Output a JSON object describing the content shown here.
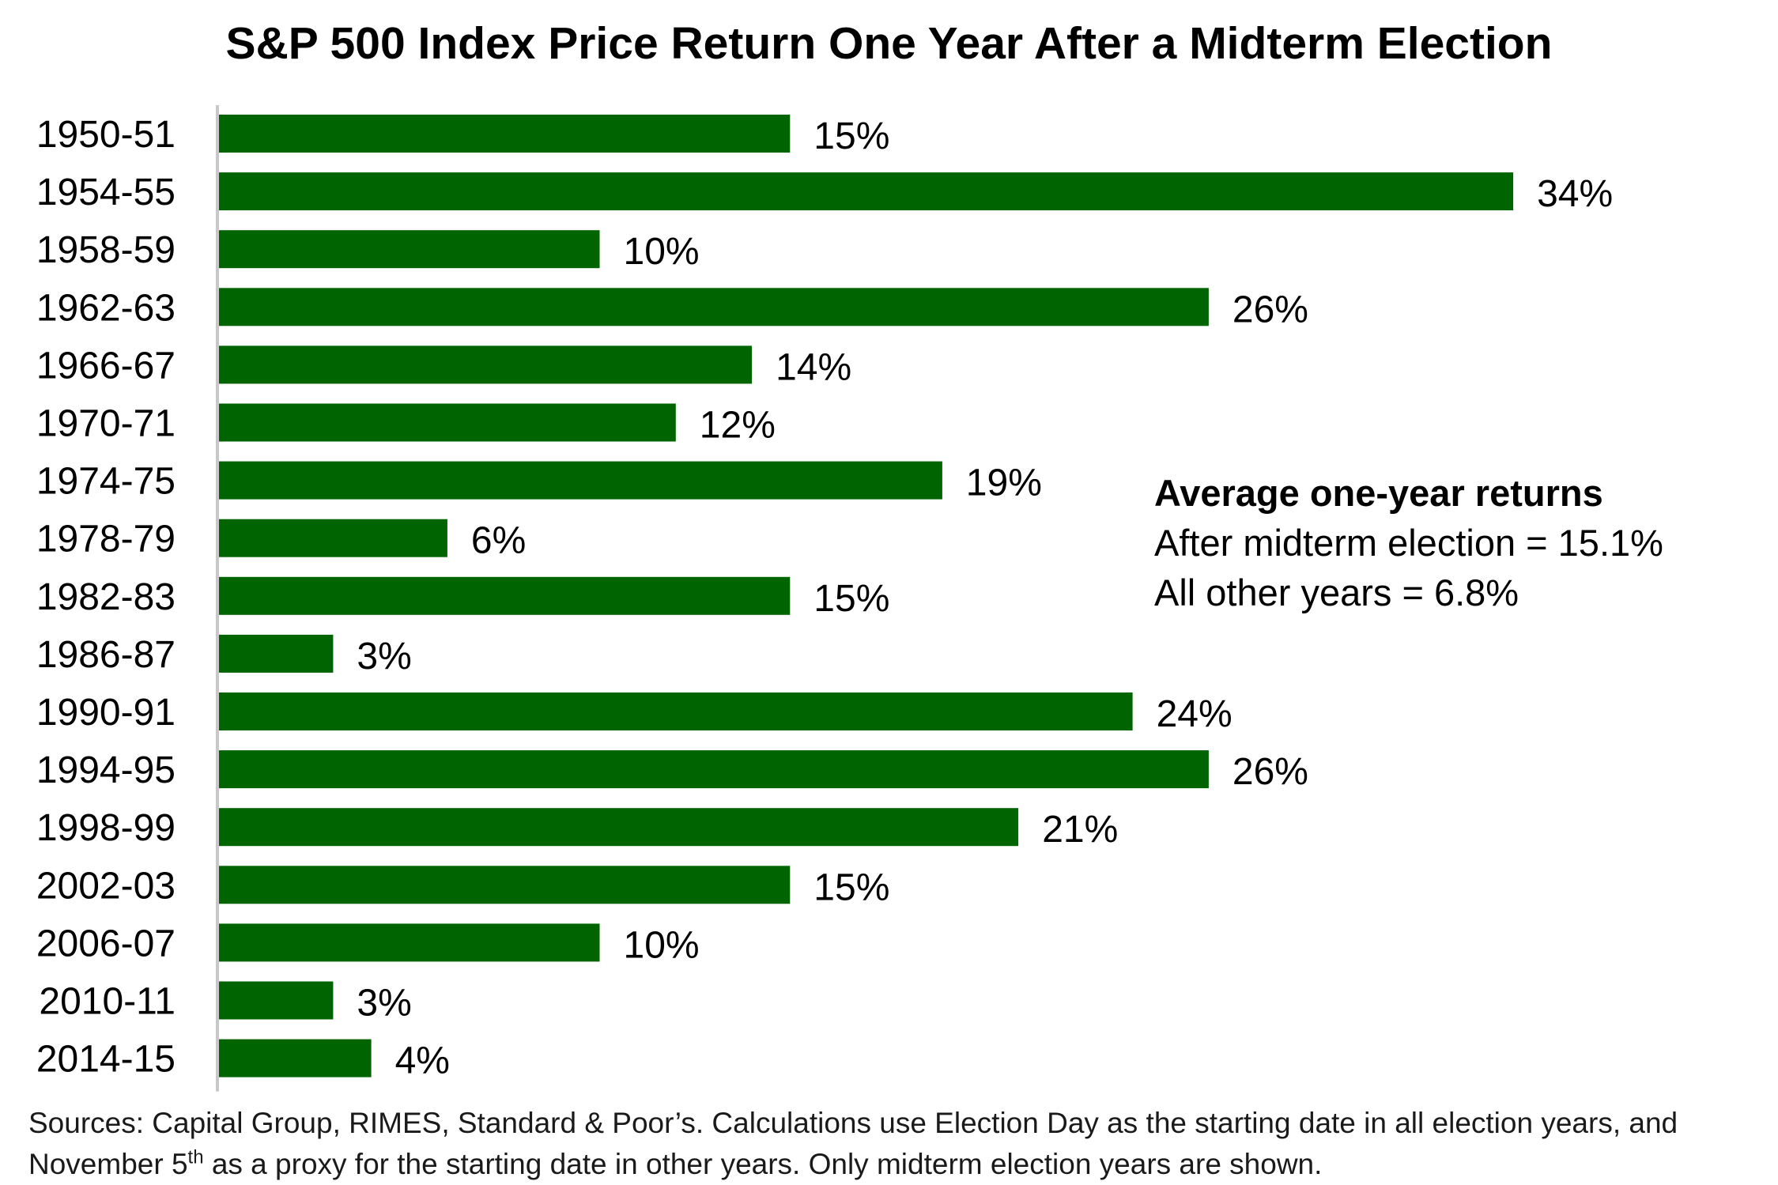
{
  "chart_data": {
    "type": "bar",
    "orientation": "horizontal",
    "title": "S&P 500 Index Price Return One Year After a Midterm Election",
    "categories": [
      "1950-51",
      "1954-55",
      "1958-59",
      "1962-63",
      "1966-67",
      "1970-71",
      "1974-75",
      "1978-79",
      "1982-83",
      "1986-87",
      "1990-91",
      "1994-95",
      "1998-99",
      "2002-03",
      "2006-07",
      "2010-11",
      "2014-15"
    ],
    "values": [
      15,
      34,
      10,
      26,
      14,
      12,
      19,
      6,
      15,
      3,
      24,
      26,
      21,
      15,
      10,
      3,
      4
    ],
    "value_labels": [
      "15%",
      "34%",
      "10%",
      "26%",
      "14%",
      "12%",
      "19%",
      "6%",
      "15%",
      "3%",
      "24%",
      "26%",
      "21%",
      "15%",
      "10%",
      "3%",
      "4%"
    ],
    "xlabel": "",
    "ylabel": "",
    "xlim": [
      0,
      34
    ],
    "grid": false,
    "legend": "none",
    "bar_color": "#006400",
    "axis_color": "#c8c8c8"
  },
  "stats": {
    "heading": "Average one-year returns",
    "line1": "After midterm election = 15.1%",
    "line2": "All other years = 6.8%"
  },
  "source": {
    "text_before": "Sources: Capital Group, RIMES, Standard & Poor’s. Calculations use Election Day as the starting date in all election years, and November 5",
    "superscript": "th",
    "text_after": " as a proxy for the starting date in other years. Only midterm election years are shown."
  }
}
